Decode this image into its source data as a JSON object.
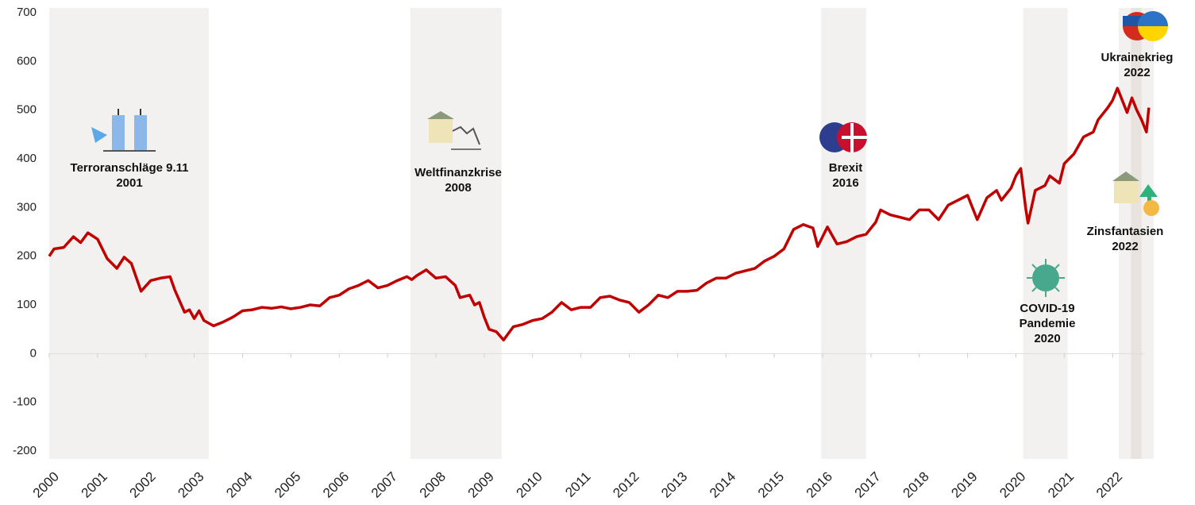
{
  "chart_data": {
    "type": "line",
    "x": [
      2000.0,
      2000.1,
      2000.3,
      2000.5,
      2000.65,
      2000.8,
      2001.0,
      2001.2,
      2001.4,
      2001.55,
      2001.7,
      2001.9,
      2002.1,
      2002.3,
      2002.5,
      2002.6,
      2002.8,
      2002.9,
      2003.0,
      2003.1,
      2003.2,
      2003.4,
      2003.6,
      2003.8,
      2004.0,
      2004.2,
      2004.4,
      2004.6,
      2004.8,
      2005.0,
      2005.2,
      2005.4,
      2005.6,
      2005.8,
      2006.0,
      2006.2,
      2006.4,
      2006.6,
      2006.8,
      2007.0,
      2007.2,
      2007.4,
      2007.5,
      2007.6,
      2007.8,
      2008.0,
      2008.2,
      2008.4,
      2008.5,
      2008.7,
      2008.8,
      2008.9,
      2009.0,
      2009.1,
      2009.25,
      2009.4,
      2009.6,
      2009.8,
      2010.0,
      2010.2,
      2010.4,
      2010.6,
      2010.8,
      2011.0,
      2011.2,
      2011.4,
      2011.6,
      2011.8,
      2012.0,
      2012.2,
      2012.4,
      2012.6,
      2012.8,
      2013.0,
      2013.2,
      2013.4,
      2013.6,
      2013.8,
      2014.0,
      2014.2,
      2014.4,
      2014.6,
      2014.8,
      2015.0,
      2015.2,
      2015.4,
      2015.6,
      2015.8,
      2015.9,
      2016.1,
      2016.3,
      2016.5,
      2016.7,
      2016.9,
      2017.1,
      2017.2,
      2017.4,
      2017.6,
      2017.8,
      2018.0,
      2018.2,
      2018.4,
      2018.6,
      2018.8,
      2019.0,
      2019.1,
      2019.2,
      2019.4,
      2019.6,
      2019.7,
      2019.9,
      2020.0,
      2020.1,
      2020.2,
      2020.25,
      2020.4,
      2020.6,
      2020.7,
      2020.9,
      2021.0,
      2021.2,
      2021.4,
      2021.6,
      2021.7,
      2021.9,
      2022.0,
      2022.1,
      2022.2,
      2022.3,
      2022.4,
      2022.5,
      2022.6,
      2022.7,
      2022.75
    ],
    "series": [
      {
        "color": "#c00000",
        "values": [
          200,
          215,
          218,
          240,
          228,
          248,
          235,
          195,
          175,
          198,
          185,
          128,
          150,
          155,
          158,
          130,
          85,
          90,
          72,
          88,
          68,
          57,
          65,
          75,
          88,
          90,
          95,
          93,
          96,
          92,
          95,
          100,
          98,
          115,
          120,
          133,
          140,
          150,
          135,
          140,
          150,
          158,
          152,
          160,
          172,
          155,
          158,
          140,
          115,
          120,
          100,
          105,
          75,
          50,
          45,
          28,
          55,
          60,
          68,
          72,
          85,
          105,
          90,
          95,
          95,
          115,
          118,
          110,
          105,
          85,
          100,
          120,
          115,
          128,
          128,
          130,
          145,
          155,
          155,
          165,
          170,
          175,
          190,
          200,
          215,
          255,
          265,
          258,
          220,
          260,
          225,
          230,
          240,
          245,
          270,
          295,
          285,
          280,
          275,
          295,
          295,
          275,
          305,
          315,
          325,
          300,
          275,
          320,
          335,
          315,
          340,
          365,
          380,
          300,
          268,
          335,
          345,
          365,
          350,
          390,
          410,
          445,
          455,
          480,
          505,
          520,
          545,
          520,
          495,
          525,
          500,
          480,
          455,
          505
        ]
      }
    ],
    "xlim": [
      2000,
      2022.9
    ],
    "xticks": [
      2000,
      2001,
      2002,
      2003,
      2004,
      2005,
      2006,
      2007,
      2008,
      2009,
      2010,
      2011,
      2012,
      2013,
      2014,
      2015,
      2016,
      2017,
      2018,
      2019,
      2020,
      2021,
      2022
    ],
    "ylim": [
      -200,
      700
    ],
    "yticks": [
      -200,
      -100,
      0,
      100,
      200,
      300,
      400,
      500,
      600,
      700
    ],
    "periods": [
      [
        2000.0,
        2003.3
      ],
      [
        2007.47,
        2009.36
      ],
      [
        2015.97,
        2016.9
      ],
      [
        2020.15,
        2021.07
      ],
      [
        2022.13,
        2022.85
      ],
      [
        2022.38,
        2022.6
      ]
    ],
    "annotations": [
      {
        "lines": [
          "Terroranschläge 9.11",
          "2001"
        ]
      },
      {
        "lines": [
          "Weltfinanzkrise",
          "2008"
        ]
      },
      {
        "lines": [
          "Brexit",
          "2016"
        ]
      },
      {
        "lines": [
          "COVID-19",
          "Pandemie",
          "2020"
        ]
      },
      {
        "lines": [
          "Zinsfantasien",
          "2022"
        ]
      },
      {
        "lines": [
          "Ukrainekrieg",
          "2022"
        ]
      }
    ]
  }
}
